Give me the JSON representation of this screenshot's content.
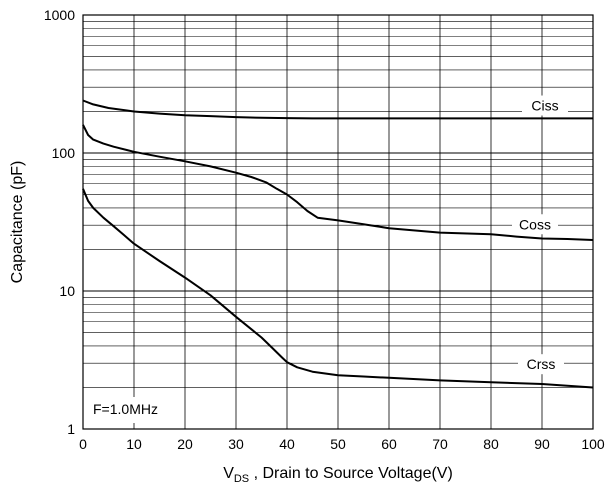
{
  "chart_data": {
    "type": "line",
    "title": "",
    "xlabel": {
      "main": "V",
      "sub": "DS",
      "rest": " , Drain to Source Voltage(V)"
    },
    "ylabel": "Capacitance (pF)",
    "xlim": [
      0,
      100
    ],
    "ylim": [
      1,
      1000
    ],
    "yscale": "log",
    "grid": true,
    "x_ticks": [
      "0",
      "10",
      "20",
      "30",
      "40",
      "50",
      "60",
      "70",
      "80",
      "90",
      "100"
    ],
    "y_ticks": [
      "1",
      "10",
      "100",
      "1000"
    ],
    "annotation": "F=1.0MHz",
    "series": [
      {
        "name": "Ciss",
        "x": [
          0,
          2,
          5,
          10,
          15,
          20,
          25,
          30,
          35,
          40,
          45,
          50,
          60,
          70,
          80,
          90,
          100
        ],
        "y": [
          240,
          225,
          212,
          200,
          193,
          188,
          185,
          182,
          180,
          179,
          178,
          178,
          178,
          178,
          178,
          178,
          178
        ]
      },
      {
        "name": "Coss",
        "x": [
          0,
          1,
          2,
          4,
          6,
          10,
          15,
          20,
          25,
          30,
          33,
          36,
          38,
          40,
          42,
          44,
          46,
          50,
          55,
          60,
          70,
          80,
          85,
          90,
          95,
          100
        ],
        "y": [
          160,
          135,
          125,
          117,
          111,
          102,
          94,
          87,
          80,
          72,
          67,
          61,
          55,
          50,
          44,
          38,
          34,
          32.5,
          30.5,
          28.5,
          26.5,
          25.8,
          24.8,
          24,
          23.8,
          23.4
        ]
      },
      {
        "name": "Crss",
        "x": [
          0,
          1,
          2,
          4,
          6,
          8,
          10,
          15,
          20,
          25,
          30,
          35,
          37,
          39,
          40,
          42,
          45,
          50,
          55,
          60,
          70,
          80,
          90,
          100
        ],
        "y": [
          55,
          45,
          40,
          34,
          29.5,
          25.5,
          22,
          16.5,
          12.5,
          9.3,
          6.5,
          4.6,
          3.9,
          3.3,
          3.05,
          2.8,
          2.6,
          2.45,
          2.4,
          2.35,
          2.25,
          2.18,
          2.12,
          2.0
        ]
      }
    ]
  }
}
